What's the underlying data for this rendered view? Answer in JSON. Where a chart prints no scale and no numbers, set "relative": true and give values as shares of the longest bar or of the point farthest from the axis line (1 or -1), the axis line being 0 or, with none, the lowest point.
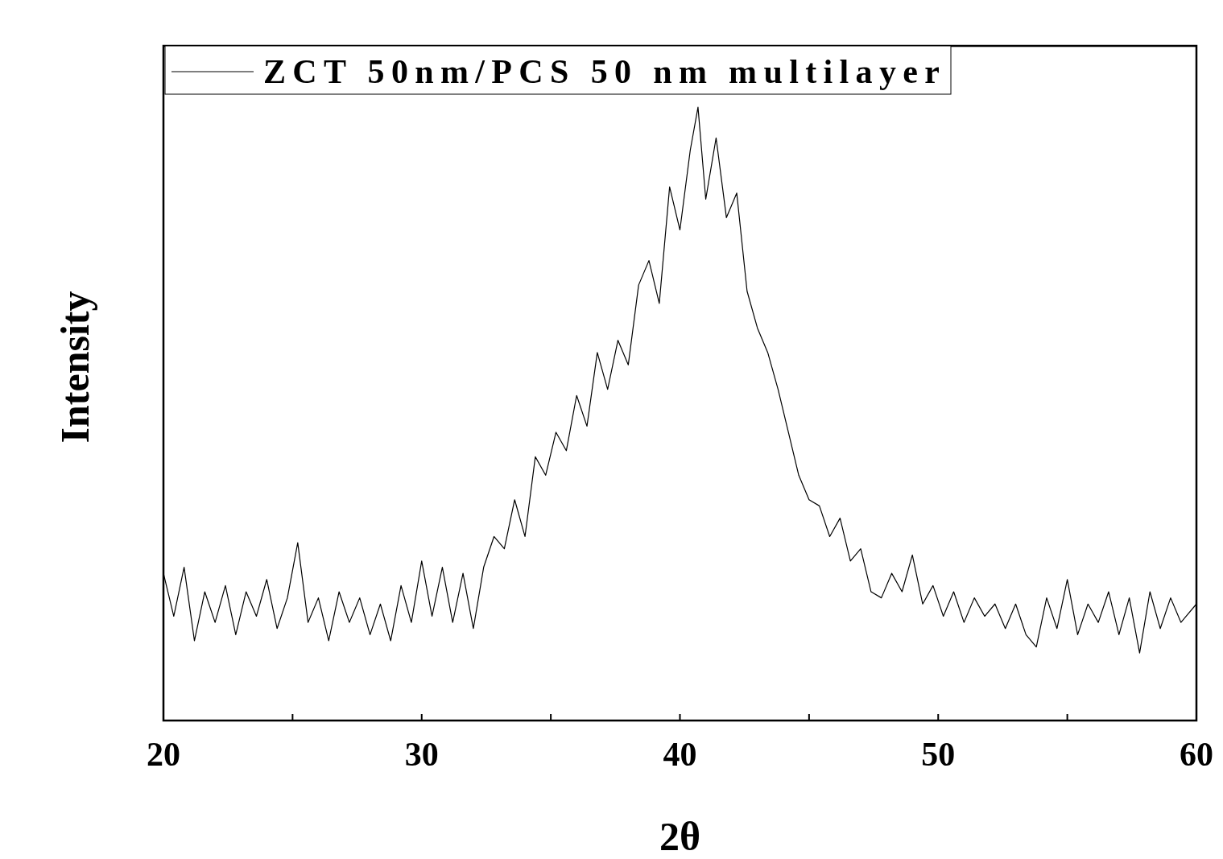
{
  "chart_data": {
    "type": "line",
    "xlabel": "2θ",
    "ylabel": "Intensity",
    "relative": true,
    "legend": "top left",
    "line_style": "solid",
    "xlim": [
      20,
      60
    ],
    "xticks": [
      20,
      {
        "value": 25,
        "label": null
      },
      30,
      {
        "value": 35,
        "label": null
      },
      40,
      {
        "value": 45,
        "label": null
      },
      50,
      {
        "value": 55,
        "label": null
      },
      60
    ],
    "x": [
      20.0,
      20.4,
      20.8,
      21.2,
      21.6,
      22.0,
      22.4,
      22.8,
      23.2,
      23.6,
      24.0,
      24.4,
      24.8,
      25.2,
      25.6,
      26.0,
      26.4,
      26.8,
      27.2,
      27.6,
      28.0,
      28.4,
      28.8,
      29.2,
      29.6,
      30.0,
      30.4,
      30.8,
      31.2,
      31.6,
      32.0,
      32.4,
      32.8,
      33.2,
      33.6,
      34.0,
      34.4,
      34.8,
      35.2,
      35.6,
      36.0,
      36.4,
      36.8,
      37.2,
      37.6,
      38.0,
      38.4,
      38.8,
      39.2,
      39.6,
      40.0,
      40.4,
      40.7,
      41.0,
      41.4,
      41.8,
      42.2,
      42.6,
      43.0,
      43.4,
      43.8,
      44.2,
      44.6,
      45.0,
      45.4,
      45.8,
      46.2,
      46.6,
      47.0,
      47.4,
      47.8,
      48.2,
      48.6,
      49.0,
      49.4,
      49.8,
      50.2,
      50.6,
      51.0,
      51.4,
      51.8,
      52.2,
      52.6,
      53.0,
      53.4,
      53.8,
      54.2,
      54.6,
      55.0,
      55.4,
      55.8,
      56.2,
      56.6,
      57.0,
      57.4,
      57.8,
      58.2,
      58.6,
      59.0,
      59.4,
      60.0
    ],
    "series": [
      {
        "name": "ZCT 50nm/PCS 50 nm multilayer",
        "color": "#000000",
        "values": [
          0.24,
          0.17,
          0.25,
          0.13,
          0.21,
          0.16,
          0.22,
          0.14,
          0.21,
          0.17,
          0.23,
          0.15,
          0.2,
          0.29,
          0.16,
          0.2,
          0.13,
          0.21,
          0.16,
          0.2,
          0.14,
          0.19,
          0.13,
          0.22,
          0.16,
          0.26,
          0.17,
          0.25,
          0.16,
          0.24,
          0.15,
          0.25,
          0.3,
          0.28,
          0.36,
          0.3,
          0.43,
          0.4,
          0.47,
          0.44,
          0.53,
          0.48,
          0.6,
          0.54,
          0.62,
          0.58,
          0.71,
          0.75,
          0.68,
          0.87,
          0.8,
          0.93,
          1.0,
          0.85,
          0.95,
          0.82,
          0.86,
          0.7,
          0.64,
          0.6,
          0.54,
          0.47,
          0.4,
          0.36,
          0.35,
          0.3,
          0.33,
          0.26,
          0.28,
          0.21,
          0.2,
          0.24,
          0.21,
          0.27,
          0.19,
          0.22,
          0.17,
          0.21,
          0.16,
          0.2,
          0.17,
          0.19,
          0.15,
          0.19,
          0.14,
          0.12,
          0.2,
          0.15,
          0.23,
          0.14,
          0.19,
          0.16,
          0.21,
          0.14,
          0.2,
          0.11,
          0.21,
          0.15,
          0.2,
          0.16,
          0.19
        ]
      }
    ]
  }
}
